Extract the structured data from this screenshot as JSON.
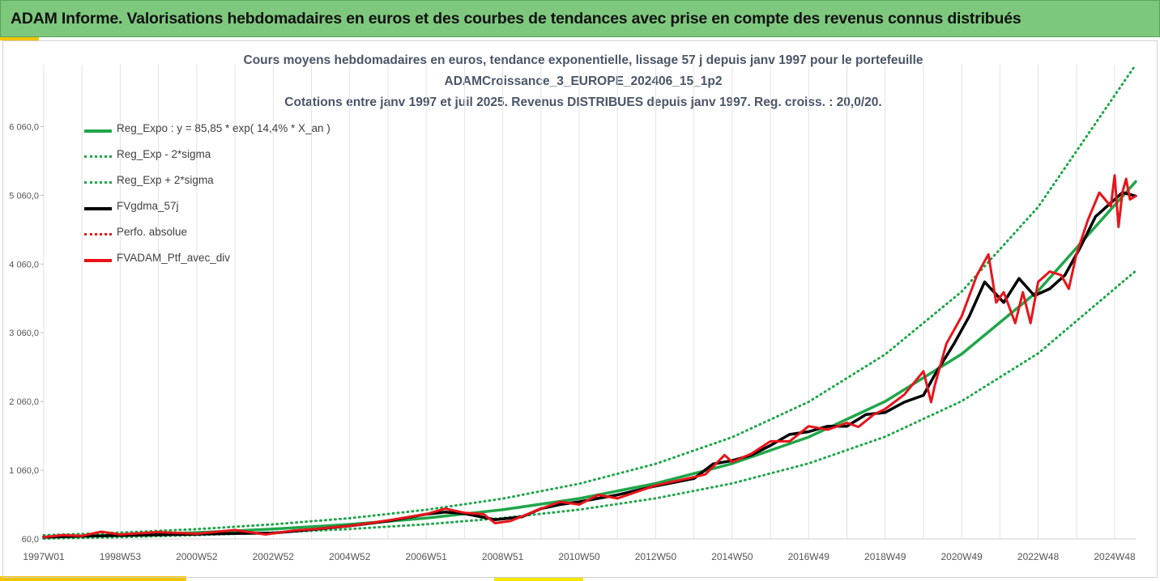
{
  "header": {
    "title": "ADAM Informe. Valorisations hebdomadaires en euros et des courbes de tendances avec prise en compte des revenus connus distribués"
  },
  "colors": {
    "banner": "#7dc87d",
    "accent": "#f2c400",
    "reg_expo": "#1fa64a",
    "gdma": "#000000",
    "ptf": "#e8141a"
  },
  "chart_data": {
    "type": "line",
    "title": [
      "Cours moyens hebdomadaires  en euros, tendance exponentielle, lissage 57 j depuis janv 1997 pour le portefeuille",
      "ADAMCroissance_3_EUROPE_202406_15_1p2",
      "Cotations  entre janv 1997 et juil 2025. Revenus DISTRIBUES depuis janv 1997. Reg. croiss. : 20,0/20."
    ],
    "x_tick_labels": [
      "1997W01",
      "1998W53",
      "2000W52",
      "2002W52",
      "2004W52",
      "2006W51",
      "2008W51",
      "2010W50",
      "2012W50",
      "2014W50",
      "2016W49",
      "2018W49",
      "2020W49",
      "2022W48",
      "2024W48"
    ],
    "x_tick_years": [
      1997.0,
      1999.0,
      2001.0,
      2003.0,
      2005.0,
      2007.0,
      2009.0,
      2011.0,
      2013.0,
      2015.0,
      2017.0,
      2019.0,
      2021.0,
      2023.0,
      2025.0
    ],
    "xlim": [
      1997.0,
      2025.55
    ],
    "y_tick_labels": [
      "60,0",
      "1 060,0",
      "2 060,0",
      "3 060,0",
      "4 060,0",
      "5 060,0",
      "6 060,0"
    ],
    "y_ticks": [
      60,
      1060,
      2060,
      3060,
      4060,
      5060,
      6060
    ],
    "ylim": [
      60,
      6960
    ],
    "grid": "vertical",
    "legend_position": "top-left",
    "legend": [
      {
        "label": "Reg_Expo : y = 85,85 * exp( 14,4% *  X_an )",
        "style": "solid",
        "color": "#1fa64a"
      },
      {
        "label": "Reg_Exp - 2*sigma",
        "style": "dotted",
        "color": "#1fa64a"
      },
      {
        "label": "Reg_Exp + 2*sigma",
        "style": "dotted",
        "color": "#1fa64a"
      },
      {
        "label": "FVgdma_57j",
        "style": "solid",
        "color": "#000000"
      },
      {
        "label": "Perfo. absolue",
        "style": "dotted",
        "color": "#e8141a"
      },
      {
        "label": "FVADAM_Ptf_avec_div",
        "style": "solid",
        "color": "#e8141a"
      }
    ],
    "series": [
      {
        "name": "Reg_Expo : y = 85,85 * exp( 14,4% *  X_an )",
        "x": [
          1997,
          1999,
          2001,
          2003,
          2005,
          2007,
          2009,
          2011,
          2013,
          2015,
          2017,
          2019,
          2021,
          2023,
          2025.55
        ],
        "values": [
          86,
          114,
          153,
          204,
          272,
          363,
          485,
          648,
          866,
          1156,
          1543,
          2060,
          2750,
          3670,
          5260
        ]
      },
      {
        "name": "Reg_Exp - 2*sigma",
        "x": [
          1997,
          1999,
          2001,
          2003,
          2005,
          2007,
          2009,
          2011,
          2013,
          2015,
          2017,
          2019,
          2021,
          2023,
          2025.55
        ],
        "values": [
          65,
          86,
          115,
          153,
          204,
          273,
          364,
          486,
          650,
          868,
          1158,
          1547,
          2065,
          2760,
          3960
        ]
      },
      {
        "name": "Reg_Exp + 2*sigma",
        "x": [
          1997,
          1999,
          2001,
          2003,
          2005,
          2007,
          2009,
          2011,
          2013,
          2015,
          2017,
          2019,
          2021,
          2023,
          2025.55
        ],
        "values": [
          114,
          152,
          203,
          272,
          362,
          484,
          646,
          863,
          1153,
          1540,
          2055,
          2745,
          3660,
          4890,
          6960
        ]
      },
      {
        "name": "FVgdma_57j",
        "x": [
          1997,
          1998,
          1999,
          2000,
          2001,
          2002,
          2003,
          2004,
          2005,
          2006,
          2007,
          2007.5,
          2008,
          2008.8,
          2009.5,
          2010,
          2010.5,
          2011,
          2012,
          2013,
          2014,
          2014.5,
          2015,
          2015.5,
          2016,
          2016.5,
          2017,
          2017.5,
          2018,
          2018.5,
          2019,
          2019.5,
          2020,
          2020.3,
          2020.8,
          2021.2,
          2021.6,
          2022.1,
          2022.5,
          2022.9,
          2023.3,
          2023.7,
          2024.1,
          2024.5,
          2024.9,
          2025.2,
          2025.55
        ],
        "values": [
          86,
          100,
          110,
          120,
          130,
          140,
          145,
          195,
          250,
          320,
          420,
          450,
          430,
          340,
          380,
          500,
          560,
          600,
          700,
          830,
          940,
          1150,
          1200,
          1280,
          1420,
          1580,
          1620,
          1700,
          1700,
          1870,
          1900,
          2050,
          2150,
          2450,
          2900,
          3300,
          3800,
          3500,
          3850,
          3600,
          3700,
          3900,
          4300,
          4750,
          4950,
          5100,
          5050
        ]
      },
      {
        "name": "FVADAM_Ptf_avec_div",
        "x": [
          1997,
          1997.5,
          1998,
          1998.5,
          1999,
          2000,
          2001,
          2002,
          2002.8,
          2003.5,
          2004,
          2005,
          2006,
          2007,
          2007.5,
          2008,
          2008.5,
          2008.8,
          2009.2,
          2009.6,
          2010,
          2010.5,
          2011,
          2011.5,
          2012,
          2013,
          2014,
          2014.3,
          2014.8,
          2015,
          2015.5,
          2016,
          2016.5,
          2017,
          2017.5,
          2018,
          2018.3,
          2018.7,
          2019,
          2019.5,
          2020,
          2020.2,
          2020.3,
          2020.6,
          2021,
          2021.4,
          2021.7,
          2021.9,
          2022.1,
          2022.4,
          2022.6,
          2022.8,
          2023,
          2023.3,
          2023.6,
          2023.8,
          2024.0,
          2024.3,
          2024.6,
          2024.9,
          2025.0,
          2025.1,
          2025.2,
          2025.3,
          2025.4,
          2025.55
        ],
        "values": [
          86,
          115,
          105,
          165,
          125,
          160,
          135,
          190,
          125,
          180,
          200,
          250,
          330,
          420,
          500,
          440,
          420,
          290,
          320,
          410,
          500,
          600,
          560,
          700,
          650,
          840,
          960,
          1000,
          1280,
          1180,
          1300,
          1480,
          1480,
          1700,
          1650,
          1750,
          1690,
          1870,
          1950,
          2160,
          2500,
          2050,
          2300,
          2900,
          3300,
          3900,
          4200,
          3500,
          3650,
          3200,
          3650,
          3200,
          3800,
          3950,
          3900,
          3700,
          4200,
          4700,
          5100,
          4900,
          5350,
          4600,
          5100,
          5300,
          5000,
          5050
        ]
      }
    ]
  }
}
